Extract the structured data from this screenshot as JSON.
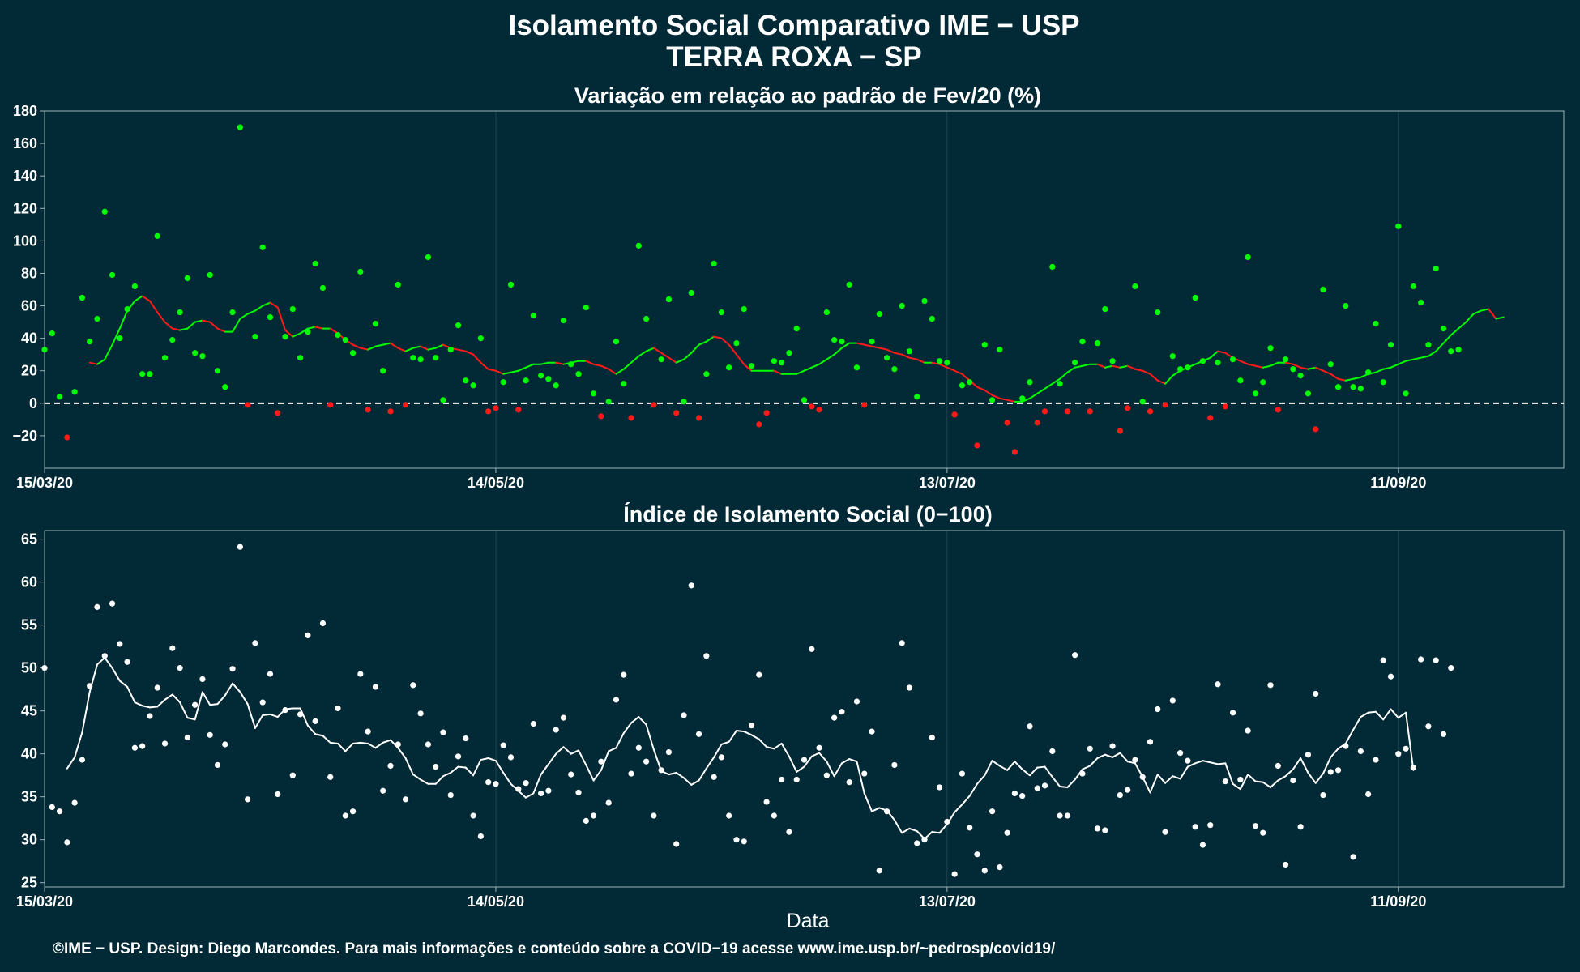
{
  "header": {
    "title_line1": "Isolamento Social Comparativo IME − USP",
    "title_line2": "TERRA ROXA − SP"
  },
  "footer": {
    "xlabel": "Data",
    "credit": "©IME − USP. Design: Diego Marcondes. Para mais informações e conteúdo sobre a COVID−19 acesse www.ime.usp.br/~pedrosp/covid19/"
  },
  "colors": {
    "background": "#022a36",
    "grid": "#1d4450",
    "axis": "#9fb3b9",
    "positive": "#00ff00",
    "negative": "#ff1a1a",
    "index": "#ffffff"
  },
  "chart_data": [
    {
      "type": "scatter",
      "title": "Variação em relação ao padrão de Fev/20 (%)",
      "xlabel": "",
      "ylabel": "",
      "x_start": "15/03/20",
      "x_ticks": [
        {
          "label": "15/03/20",
          "day": 0
        },
        {
          "label": "14/05/20",
          "day": 60
        },
        {
          "label": "13/07/20",
          "day": 120
        },
        {
          "label": "11/09/20",
          "day": 180
        }
      ],
      "xlim": [
        "15/03/20",
        "03/10/20"
      ],
      "ylim": [
        -40,
        180
      ],
      "y_ticks": [
        -20,
        0,
        20,
        40,
        60,
        80,
        100,
        120,
        140,
        160,
        180
      ],
      "reference_line": 0,
      "series": [
        {
          "kind": "points",
          "values": [
            33,
            43,
            4,
            -21,
            7,
            65,
            38,
            52,
            118,
            79,
            40,
            58,
            72,
            18,
            18,
            103,
            28,
            39,
            56,
            77,
            31,
            29,
            79,
            20,
            10,
            56,
            170,
            -1,
            41,
            96,
            53,
            -6,
            41,
            58,
            28,
            44,
            86,
            71,
            -1,
            42,
            39,
            31,
            81,
            -4,
            49,
            20,
            -5,
            73,
            -1,
            28,
            27,
            90,
            28,
            2,
            33,
            48,
            14,
            11,
            40,
            -5,
            -3,
            13,
            73,
            -4,
            14,
            54,
            17,
            15,
            11,
            51,
            24,
            18,
            59,
            6,
            -8,
            1,
            38,
            12,
            -9,
            97,
            52,
            -1,
            27,
            64,
            -6,
            1,
            68,
            -9,
            18,
            86,
            56,
            22,
            37,
            58,
            23,
            -13,
            -6,
            26,
            25,
            31,
            46,
            2,
            -2,
            -4,
            56,
            39,
            38,
            73,
            22,
            -1,
            38,
            55,
            28,
            21,
            60,
            32,
            4,
            63,
            52,
            26,
            25,
            -7,
            11,
            13,
            -26,
            36,
            2,
            33,
            -12,
            -30,
            3,
            13,
            -12,
            -5,
            84,
            12,
            -5,
            25,
            38,
            -5,
            37,
            58,
            26,
            -17,
            -3,
            72,
            1,
            -5,
            56,
            -1,
            29,
            21,
            22,
            65,
            26,
            -9,
            25,
            -2,
            27,
            14,
            90,
            6,
            13,
            34,
            -4,
            27,
            21,
            17,
            6,
            -16,
            70,
            24,
            10,
            60,
            10,
            9,
            19,
            49,
            13,
            36,
            109,
            6,
            72,
            62,
            36,
            83,
            46,
            32,
            33
          ]
        },
        {
          "kind": "moving_average",
          "values": [
            null,
            null,
            null,
            null,
            null,
            null,
            25,
            24,
            27,
            36,
            46,
            57,
            63,
            66,
            63,
            56,
            50,
            46,
            45,
            46,
            50,
            51,
            50,
            46,
            44,
            44,
            52,
            55,
            57,
            60,
            62,
            59,
            45,
            41,
            43,
            46,
            47,
            46,
            46,
            43,
            39,
            36,
            34,
            33,
            35,
            36,
            37,
            34,
            32,
            34,
            35,
            33,
            34,
            36,
            34,
            33,
            32,
            30,
            25,
            21,
            20,
            18,
            19,
            20,
            22,
            24,
            24,
            25,
            25,
            24,
            25,
            26,
            26,
            24,
            23,
            21,
            18,
            21,
            25,
            29,
            32,
            34,
            31,
            28,
            25,
            27,
            31,
            36,
            38,
            41,
            40,
            36,
            30,
            24,
            20,
            20,
            20,
            20,
            18,
            18,
            18,
            20,
            22,
            24,
            27,
            30,
            34,
            37,
            37,
            36,
            35,
            34,
            33,
            31,
            30,
            28,
            27,
            25,
            25,
            24,
            22,
            20,
            18,
            14,
            10,
            8,
            5,
            3,
            2,
            1,
            1,
            3,
            6,
            9,
            12,
            15,
            19,
            22,
            23,
            24,
            24,
            22,
            23,
            22,
            23,
            21,
            20,
            18,
            14,
            12,
            17,
            20,
            22,
            24,
            26,
            28,
            32,
            31,
            28,
            26,
            24,
            23,
            22,
            23,
            25,
            25,
            24,
            22,
            21,
            22,
            20,
            18,
            15,
            14,
            15,
            16,
            18,
            19,
            21,
            22,
            24,
            26,
            27,
            28,
            29,
            32,
            37,
            42,
            46,
            50,
            55,
            57,
            58,
            52,
            53
          ]
        }
      ]
    },
    {
      "type": "scatter",
      "title": "Índice de Isolamento Social (0−100)",
      "xlabel": "Data",
      "ylabel": "",
      "x_start": "15/03/20",
      "x_ticks": [
        {
          "label": "15/03/20",
          "day": 0
        },
        {
          "label": "14/05/20",
          "day": 60
        },
        {
          "label": "13/07/20",
          "day": 120
        },
        {
          "label": "11/09/20",
          "day": 180
        }
      ],
      "xlim": [
        "15/03/20",
        "03/10/20"
      ],
      "ylim": [
        24.5,
        66
      ],
      "y_ticks": [
        25,
        30,
        35,
        40,
        45,
        50,
        55,
        60,
        65
      ],
      "series": [
        {
          "kind": "points",
          "values": [
            50,
            33.8,
            33.3,
            29.7,
            34.3,
            39.3,
            47.9,
            57.1,
            51.4,
            57.5,
            52.8,
            50.7,
            40.7,
            40.9,
            44.4,
            47.7,
            41.2,
            52.3,
            50,
            41.9,
            45.7,
            48.7,
            42.2,
            38.7,
            41.1,
            49.9,
            64.1,
            34.7,
            52.9,
            46,
            49.3,
            35.3,
            45.1,
            37.5,
            44.6,
            53.8,
            43.8,
            55.2,
            37.3,
            45.3,
            32.8,
            33.3,
            49.3,
            42.6,
            47.8,
            35.7,
            38.6,
            41.1,
            34.7,
            48,
            44.7,
            41.1,
            38.5,
            42.5,
            35.2,
            39.7,
            41.8,
            32.8,
            30.4,
            36.7,
            36.5,
            41,
            39.6,
            35.9,
            36.6,
            43.5,
            35.4,
            35.7,
            42.8,
            44.2,
            37.6,
            35.5,
            32.2,
            32.8,
            39.1,
            34.3,
            46.3,
            49.2,
            37.7,
            40.7,
            39.1,
            32.8,
            38.1,
            40.2,
            29.5,
            44.5,
            59.6,
            42.3,
            51.4,
            37.3,
            39.6,
            32.8,
            30,
            29.8,
            43.3,
            49.2,
            34.4,
            32.8,
            37,
            30.9,
            37,
            39.3,
            52.2,
            40.7,
            37.5,
            44.2,
            44.9,
            36.7,
            46.1,
            37.7,
            42.6,
            26.4,
            33.3,
            38.7,
            52.9,
            47.7,
            29.6,
            30,
            41.9,
            36.1,
            32.1,
            26,
            37.7,
            31.4,
            28.3,
            26.4,
            33.3,
            26.8,
            30.8,
            35.4,
            35.1,
            43.2,
            36,
            36.3,
            40.3,
            32.8,
            32.8,
            51.5,
            37.7,
            40.6,
            31.3,
            31.1,
            40.9,
            35.2,
            35.8,
            39.3,
            37.3,
            41.4,
            45.2,
            30.9,
            46.2,
            40.1,
            39.2,
            31.5,
            29.4,
            31.7,
            48.1,
            36.8,
            44.8,
            37,
            42.7,
            31.6,
            30.8,
            48,
            38.6,
            27.1,
            36.9,
            31.5,
            39.9,
            47,
            35.2,
            37.9,
            38.1,
            40.9,
            28,
            40.3,
            35.3,
            39.3,
            50.9,
            49,
            40,
            40.6,
            38.4,
            51,
            43.2,
            50.9,
            42.3,
            50
          ]
        },
        {
          "kind": "moving_average",
          "values": [
            null,
            null,
            null,
            38.3,
            39.6,
            42.5,
            47.2,
            50.4,
            51.2,
            50,
            48.5,
            47.8,
            46,
            45.6,
            45.4,
            45.5,
            46.3,
            46.9,
            46,
            44.2,
            44,
            47.2,
            45.7,
            45.8,
            46.8,
            48.2,
            47.2,
            45.8,
            43,
            44.5,
            44.6,
            44.3,
            45.2,
            45.3,
            45.3,
            43.3,
            42.3,
            42.1,
            41.3,
            41.2,
            40.3,
            41.2,
            41.3,
            41.2,
            40.7,
            41.3,
            41.6,
            40.7,
            39.5,
            37.6,
            37,
            36.5,
            36.5,
            37.4,
            37.8,
            38.5,
            38.4,
            37.5,
            39.3,
            39.5,
            39.2,
            37.8,
            36.5,
            35.7,
            34.9,
            35.4,
            37.6,
            38.8,
            40,
            40.8,
            40,
            40.4,
            38.7,
            36.9,
            38.1,
            40.3,
            40.7,
            42.4,
            43.6,
            44.3,
            43.4,
            40.5,
            38,
            37.6,
            37.8,
            37.2,
            36.4,
            36.9,
            38.3,
            39.6,
            41.1,
            41.4,
            42.7,
            42.6,
            42.2,
            41.7,
            40.8,
            40.6,
            41.2,
            39.7,
            37.9,
            38.5,
            39.7,
            40.1,
            39.1,
            37.4,
            38.9,
            39.4,
            39.1,
            35.4,
            33.3,
            33.7,
            33.4,
            32.3,
            30.8,
            31.3,
            31,
            30.1,
            30.9,
            30.8,
            31.8,
            33.2,
            34.1,
            35.1,
            36.5,
            37.5,
            39.2,
            38.6,
            38.1,
            39.1,
            38.2,
            37.5,
            38.4,
            38.5,
            37.3,
            36.2,
            36.1,
            37,
            38.2,
            38.6,
            39.5,
            39.9,
            39.6,
            40.1,
            39.1,
            38.9,
            37.3,
            35.5,
            37.6,
            36.6,
            37.4,
            37.1,
            38.5,
            38.9,
            39.2,
            39,
            38.8,
            38.9,
            36.5,
            35.9,
            37.6,
            36.8,
            36.7,
            36.1,
            36.9,
            37.4,
            38.2,
            39.5,
            37.8,
            36.6,
            37.7,
            39.6,
            40.6,
            41.2,
            42.8,
            44.3,
            44.8,
            44.9,
            44,
            45.2,
            44.2,
            44.8,
            38.1
          ]
        }
      ]
    }
  ]
}
